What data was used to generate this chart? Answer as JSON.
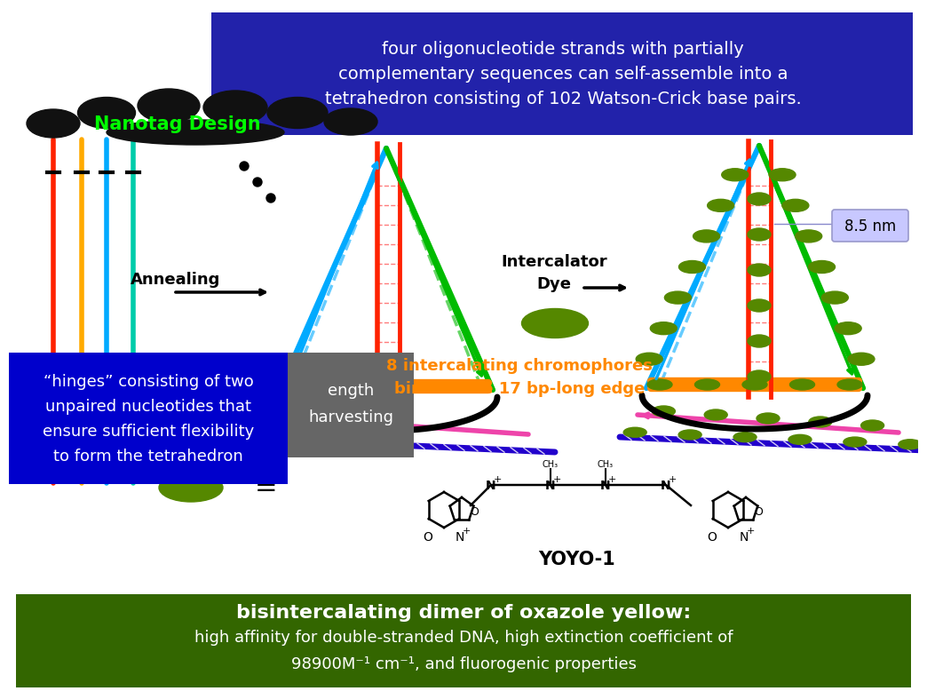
{
  "bg_color": "#ffffff",
  "title_box_color": "#2222aa",
  "title_text": "four oligonucleotide strands with partially\ncomplementary sequences can self-assemble into a\ntetrahedron consisting of 102 Watson-Crick base pairs.",
  "title_text_color": "#ffffff",
  "nanotag_text": "Nanotag Design",
  "nanotag_color": "#00ff00",
  "cloud_color": "#111111",
  "bottom_box_color": "#336600",
  "bottom_text_line1": "bisintercalating dimer of oxazole yellow:",
  "bottom_text_line2": "high affinity for double-stranded DNA, high extinction coefficient of",
  "bottom_text_line3": "98900M⁻¹ cm⁻¹, and fluorogenic properties",
  "bottom_text_color": "#ffffff",
  "hinges_text": "“hinges” consisting of two\nunpaired nucleotides that\nensure sufficient flexibility\nto form the tetrahedron",
  "hinges_box_color": "#0000cc",
  "hinges_text_color": "#ffffff",
  "intercalator_text": "8 intercalating chromophores\nbind to the 17 bp-long edge",
  "intercalator_color": "#ff8800",
  "nm_text": "8.5 nm",
  "nm_box_color": "#c8c8ff",
  "partial_text1": "ength\nharvesting",
  "partial_box_color": "#666666",
  "annealing_label": "Annealing",
  "intercalator_label": "Intercalator\nDye",
  "tetra_cyan": "#00aaff",
  "tetra_green": "#00bb00",
  "tetra_blue": "#2200cc",
  "tetra_pink": "#ee44aa",
  "tetra_orange": "#ff8800",
  "dye_green": "#558800",
  "strand1_color": "#ff2200",
  "strand2_color": "#ffaa00",
  "strand3_color": "#00aaff",
  "strand4_color": "#00ccaa",
  "tick_color": "#000000"
}
